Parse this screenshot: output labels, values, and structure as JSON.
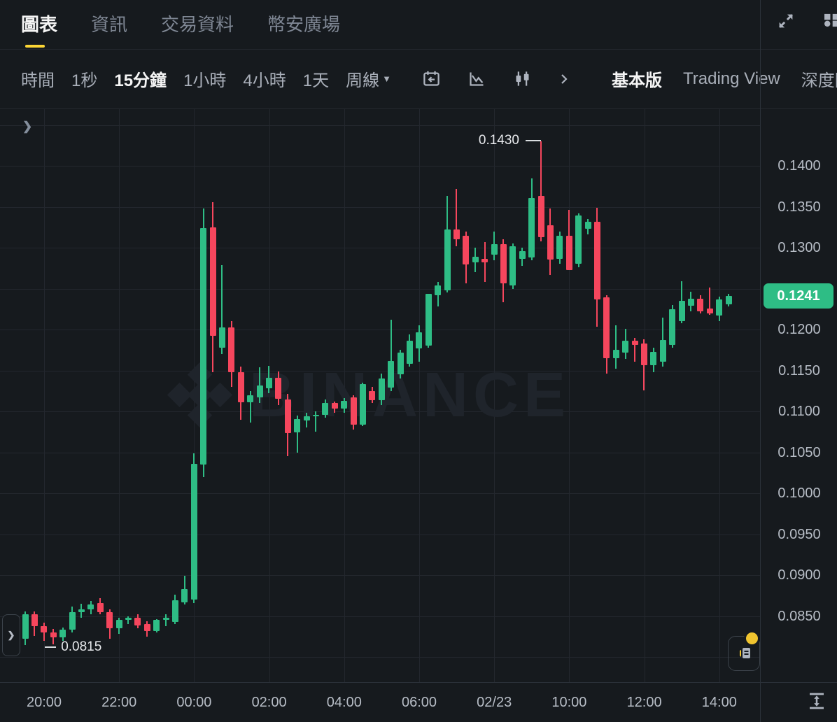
{
  "tabs": {
    "items": [
      {
        "label": "圖表",
        "active": true
      },
      {
        "label": "資訊",
        "active": false
      },
      {
        "label": "交易資料",
        "active": false
      },
      {
        "label": "幣安廣場",
        "active": false
      }
    ]
  },
  "toolbar": {
    "intervals": [
      {
        "label": "時間",
        "active": false
      },
      {
        "label": "1秒",
        "active": false
      },
      {
        "label": "15分鐘",
        "active": true
      },
      {
        "label": "1小時",
        "active": false
      },
      {
        "label": "4小時",
        "active": false
      },
      {
        "label": "1天",
        "active": false
      },
      {
        "label": "周線",
        "active": false
      }
    ],
    "modes": [
      {
        "label": "基本版",
        "active": true
      },
      {
        "label": "Trading View",
        "active": false
      },
      {
        "label": "深度圖",
        "active": false
      }
    ]
  },
  "colors": {
    "up": "#2EBD85",
    "down": "#F6465D",
    "accent_yellow": "#FCD535",
    "badge_green": "#2EBD85",
    "dot_yellow": "#F0C42F"
  },
  "chart_data": {
    "type": "candlestick",
    "watermark": "BINANCE",
    "interval_selected": "15分鐘",
    "high_marker": {
      "label": "0.1430",
      "price": 0.143
    },
    "low_marker": {
      "label": "0.0815",
      "price": 0.0815
    },
    "last_price": {
      "label": "0.1241",
      "price": 0.1241
    },
    "y_axis_ticks": [
      "0.1400",
      "0.1350",
      "0.1300",
      "0.1200",
      "0.1150",
      "0.1100",
      "0.1050",
      "0.1000",
      "0.0950",
      "0.0900",
      "0.0850"
    ],
    "x_axis_ticks": [
      "20:00",
      "22:00",
      "00:00",
      "02:00",
      "04:00",
      "06:00",
      "02/23",
      "10:00",
      "12:00",
      "14:00"
    ],
    "candles": [
      [
        0.0822,
        0.0856,
        0.0815,
        0.0852
      ],
      [
        0.0852,
        0.0856,
        0.0826,
        0.0838
      ],
      [
        0.0838,
        0.0842,
        0.082,
        0.083
      ],
      [
        0.083,
        0.0834,
        0.0815,
        0.0824
      ],
      [
        0.0824,
        0.0836,
        0.082,
        0.0833
      ],
      [
        0.0833,
        0.0862,
        0.083,
        0.0855
      ],
      [
        0.0855,
        0.0865,
        0.0848,
        0.0858
      ],
      [
        0.0858,
        0.0868,
        0.0852,
        0.0864
      ],
      [
        0.0866,
        0.0872,
        0.0852,
        0.0855
      ],
      [
        0.0855,
        0.0858,
        0.0822,
        0.0835
      ],
      [
        0.0835,
        0.0848,
        0.0828,
        0.0845
      ],
      [
        0.0845,
        0.085,
        0.084,
        0.0848
      ],
      [
        0.0848,
        0.0852,
        0.0835,
        0.0838
      ],
      [
        0.084,
        0.0844,
        0.0825,
        0.0832
      ],
      [
        0.0832,
        0.0846,
        0.083,
        0.0845
      ],
      [
        0.0845,
        0.0852,
        0.0838,
        0.0848
      ],
      [
        0.0843,
        0.0876,
        0.084,
        0.0869
      ],
      [
        0.0867,
        0.0899,
        0.0864,
        0.0883
      ],
      [
        0.087,
        0.1049,
        0.0866,
        0.1036
      ],
      [
        0.1035,
        0.1348,
        0.102,
        0.1324
      ],
      [
        0.1325,
        0.1356,
        0.1148,
        0.1192
      ],
      [
        0.1178,
        0.1279,
        0.117,
        0.1203
      ],
      [
        0.1203,
        0.121,
        0.113,
        0.1148
      ],
      [
        0.1148,
        0.1155,
        0.109,
        0.1111
      ],
      [
        0.1111,
        0.1125,
        0.1086,
        0.112
      ],
      [
        0.1117,
        0.1154,
        0.111,
        0.1132
      ],
      [
        0.1128,
        0.1156,
        0.1122,
        0.1141
      ],
      [
        0.1141,
        0.1149,
        0.1108,
        0.1115
      ],
      [
        0.1115,
        0.1121,
        0.1045,
        0.1074
      ],
      [
        0.1074,
        0.1095,
        0.105,
        0.1091
      ],
      [
        0.1089,
        0.1098,
        0.108,
        0.1094
      ],
      [
        0.1094,
        0.11,
        0.1075,
        0.1096
      ],
      [
        0.1096,
        0.1115,
        0.1092,
        0.111
      ],
      [
        0.111,
        0.1112,
        0.1098,
        0.1103
      ],
      [
        0.1103,
        0.1116,
        0.1098,
        0.1113
      ],
      [
        0.1117,
        0.112,
        0.1078,
        0.1084
      ],
      [
        0.1084,
        0.1135,
        0.1082,
        0.1133
      ],
      [
        0.1125,
        0.113,
        0.111,
        0.1114
      ],
      [
        0.1114,
        0.1146,
        0.1108,
        0.114
      ],
      [
        0.1129,
        0.1212,
        0.1125,
        0.1162
      ],
      [
        0.1145,
        0.1175,
        0.114,
        0.1172
      ],
      [
        0.1158,
        0.1194,
        0.1155,
        0.1186
      ],
      [
        0.1177,
        0.1205,
        0.1161,
        0.1197
      ],
      [
        0.118,
        0.1244,
        0.1178,
        0.1244
      ],
      [
        0.1242,
        0.1258,
        0.1228,
        0.1254
      ],
      [
        0.1248,
        0.1363,
        0.1245,
        0.1322
      ],
      [
        0.1322,
        0.1372,
        0.1302,
        0.131
      ],
      [
        0.1315,
        0.132,
        0.1256,
        0.128
      ],
      [
        0.1282,
        0.13,
        0.127,
        0.1289
      ],
      [
        0.1286,
        0.1307,
        0.1258,
        0.1282
      ],
      [
        0.1291,
        0.132,
        0.1285,
        0.1304
      ],
      [
        0.1304,
        0.131,
        0.1233,
        0.1256
      ],
      [
        0.1254,
        0.1305,
        0.125,
        0.1302
      ],
      [
        0.1286,
        0.13,
        0.1278,
        0.1296
      ],
      [
        0.1288,
        0.1385,
        0.1285,
        0.1361
      ],
      [
        0.1363,
        0.143,
        0.1308,
        0.1313
      ],
      [
        0.1327,
        0.1348,
        0.1267,
        0.1285
      ],
      [
        0.1286,
        0.132,
        0.128,
        0.1315
      ],
      [
        0.1315,
        0.1346,
        0.1273,
        0.1273
      ],
      [
        0.128,
        0.1342,
        0.1276,
        0.1339
      ],
      [
        0.1323,
        0.1335,
        0.1316,
        0.1332
      ],
      [
        0.1332,
        0.1349,
        0.1203,
        0.1237
      ],
      [
        0.1239,
        0.1242,
        0.1146,
        0.1165
      ],
      [
        0.1165,
        0.1205,
        0.1152,
        0.1175
      ],
      [
        0.1172,
        0.1201,
        0.1164,
        0.1186
      ],
      [
        0.1186,
        0.119,
        0.1161,
        0.1181
      ],
      [
        0.1183,
        0.1188,
        0.1126,
        0.1156
      ],
      [
        0.1156,
        0.1178,
        0.1148,
        0.1173
      ],
      [
        0.1161,
        0.1215,
        0.1155,
        0.1187
      ],
      [
        0.1181,
        0.123,
        0.1178,
        0.1225
      ],
      [
        0.121,
        0.1259,
        0.1208,
        0.1235
      ],
      [
        0.1229,
        0.1246,
        0.1222,
        0.1238
      ],
      [
        0.1238,
        0.1242,
        0.122,
        0.1222
      ],
      [
        0.1226,
        0.1251,
        0.1218,
        0.122
      ],
      [
        0.1217,
        0.124,
        0.121,
        0.1237
      ],
      [
        0.1231,
        0.1244,
        0.1228,
        0.1241
      ]
    ]
  }
}
